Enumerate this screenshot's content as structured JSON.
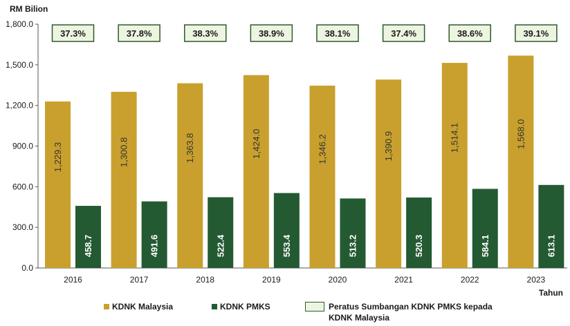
{
  "chart_data": {
    "type": "bar",
    "ylabel": "RM Bilion",
    "xlabel": "Tahun",
    "categories": [
      "2016",
      "2017",
      "2018",
      "2019",
      "2020",
      "2021",
      "2022",
      "2023"
    ],
    "ylim": [
      0,
      1800
    ],
    "yticks": [
      "0.0",
      "300.0",
      "600.0",
      "900.0",
      "1,200.0",
      "1,500.0",
      "1,800.0"
    ],
    "ytick_values": [
      0,
      300,
      600,
      900,
      1200,
      1500,
      1800
    ],
    "grid": false,
    "legend_position": "bottom",
    "series": [
      {
        "name": "KDNK Malaysia",
        "color": "#c9a02e",
        "values": [
          1229.3,
          1300.8,
          1363.8,
          1424.0,
          1346.2,
          1390.9,
          1514.1,
          1568.0
        ],
        "labels": [
          "1,229.3",
          "1,300.8",
          "1,363.8",
          "1,424.0",
          "1,346.2",
          "1,390.9",
          "1,514.1",
          "1,568.0"
        ]
      },
      {
        "name": "KDNK PMKS",
        "color": "#245a32",
        "values": [
          458.7,
          491.6,
          522.4,
          553.4,
          513.2,
          520.3,
          584.1,
          613.1
        ],
        "labels": [
          "458.7",
          "491.6",
          "522.4",
          "553.4",
          "513.2",
          "520.3",
          "584.1",
          "613.1"
        ]
      }
    ],
    "share": {
      "name": "Peratus Sumbangan KDNK PMKS kepada KDNK Malaysia",
      "values": [
        37.3,
        37.8,
        38.3,
        38.9,
        38.1,
        37.4,
        38.6,
        39.1
      ],
      "labels": [
        "37.3%",
        "37.8%",
        "38.3%",
        "38.9%",
        "38.1%",
        "37.4%",
        "38.6%",
        "39.1%"
      ],
      "fill_color": "#edf5e1",
      "border_color": "#2d5a2d"
    }
  },
  "legend": {
    "item1": "KDNK Malaysia",
    "item2": "KDNK PMKS",
    "item3_line1": "Peratus Sumbangan KDNK PMKS kepada",
    "item3_line2": "KDNK Malaysia"
  }
}
